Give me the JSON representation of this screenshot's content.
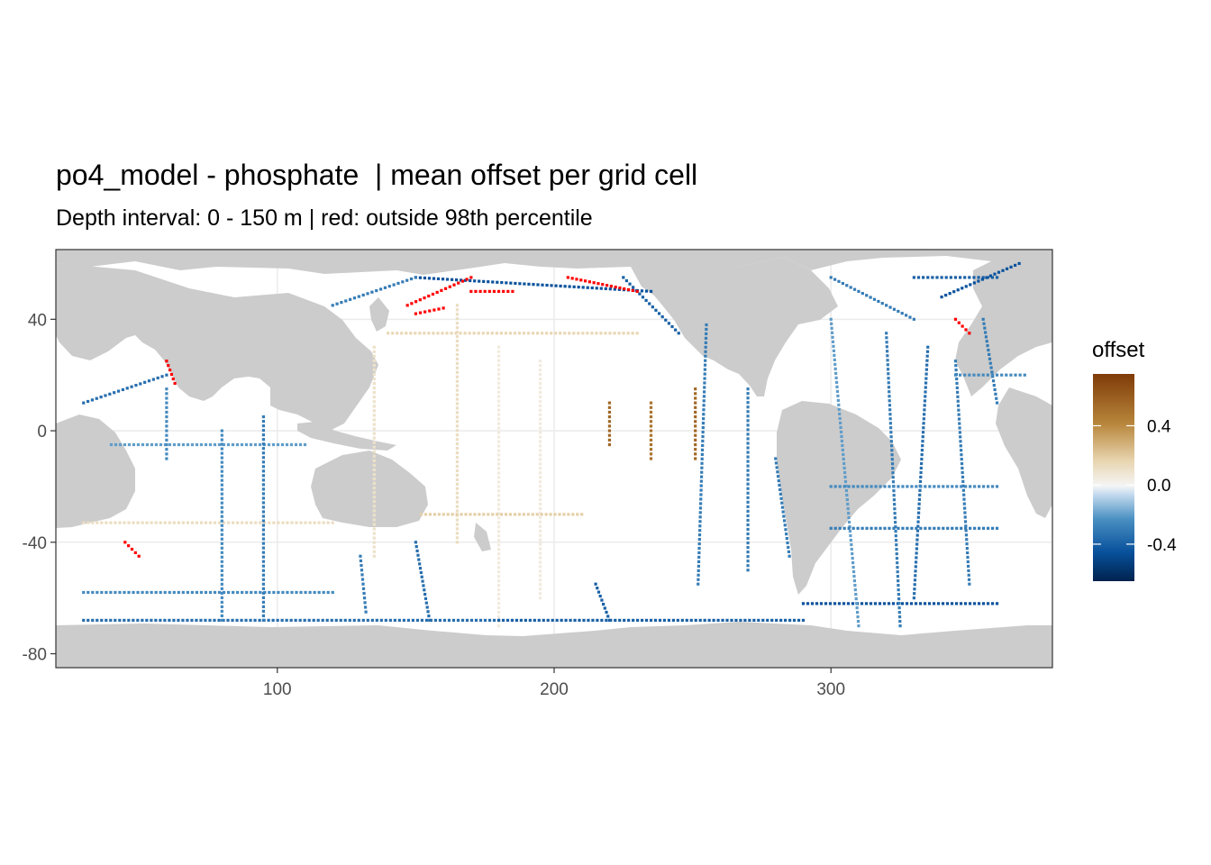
{
  "title": "po4_model - phosphate  | mean offset per grid cell",
  "subtitle": "Depth interval: 0 - 150 m | red: outside 98th percentile",
  "colors": {
    "land": "#cccccc",
    "ocean": "#ffffff",
    "grid": "#ebebeb",
    "outlier": "#ff0000",
    "scale": [
      "#00224e",
      "#08519c",
      "#4a90c2",
      "#c6dbef",
      "#f5f5f5",
      "#e8d5b0",
      "#b8863b",
      "#7f3b08"
    ]
  },
  "chart_data": {
    "type": "heatmap",
    "x_ticks": [
      100,
      200,
      300
    ],
    "y_ticks": [
      40,
      0,
      -40,
      -80
    ],
    "xlim": [
      20,
      380
    ],
    "ylim": [
      -85,
      65
    ],
    "legend": {
      "title": "offset",
      "position": "right",
      "breaks": [
        0.4,
        0.0,
        -0.4
      ],
      "break_labels": [
        "0.4",
        "0.0",
        "-0.4"
      ],
      "range": [
        -0.65,
        0.75
      ]
    },
    "tracks": [
      {
        "path": [
          [
            140,
            35
          ],
          [
            230,
            35
          ]
        ],
        "v": 0.15
      },
      {
        "path": [
          [
            135,
            30
          ],
          [
            135,
            -45
          ]
        ],
        "v": 0.1
      },
      {
        "path": [
          [
            165,
            45
          ],
          [
            165,
            -40
          ]
        ],
        "v": 0.12
      },
      {
        "path": [
          [
            180,
            30
          ],
          [
            180,
            -70
          ]
        ],
        "v": 0.05
      },
      {
        "path": [
          [
            195,
            25
          ],
          [
            195,
            -60
          ]
        ],
        "v": 0.05
      },
      {
        "path": [
          [
            220,
            10
          ],
          [
            220,
            -5
          ]
        ],
        "v": 0.55
      },
      {
        "path": [
          [
            235,
            10
          ],
          [
            235,
            -10
          ]
        ],
        "v": 0.5
      },
      {
        "path": [
          [
            251,
            15
          ],
          [
            251,
            -10
          ]
        ],
        "v": 0.55
      },
      {
        "path": [
          [
            152,
            -30
          ],
          [
            210,
            -30
          ]
        ],
        "v": 0.18
      },
      {
        "path": [
          [
            30,
            -33
          ],
          [
            120,
            -33
          ]
        ],
        "v": 0.12
      },
      {
        "path": [
          [
            255,
            38
          ],
          [
            252,
            -55
          ]
        ],
        "v": -0.3
      },
      {
        "path": [
          [
            270,
            15
          ],
          [
            270,
            -50
          ]
        ],
        "v": -0.3
      },
      {
        "path": [
          [
            280,
            -10
          ],
          [
            285,
            -45
          ]
        ],
        "v": -0.3
      },
      {
        "path": [
          [
            30,
            -68
          ],
          [
            180,
            -68
          ]
        ],
        "v": -0.35
      },
      {
        "path": [
          [
            180,
            -68
          ],
          [
            290,
            -68
          ]
        ],
        "v": -0.4
      },
      {
        "path": [
          [
            290,
            -62
          ],
          [
            360,
            -62
          ]
        ],
        "v": -0.45
      },
      {
        "path": [
          [
            30,
            -58
          ],
          [
            120,
            -58
          ]
        ],
        "v": -0.25
      },
      {
        "path": [
          [
            40,
            -5
          ],
          [
            110,
            -5
          ]
        ],
        "v": -0.2
      },
      {
        "path": [
          [
            80,
            0
          ],
          [
            80,
            -68
          ]
        ],
        "v": -0.25
      },
      {
        "path": [
          [
            95,
            5
          ],
          [
            95,
            -68
          ]
        ],
        "v": -0.3
      },
      {
        "path": [
          [
            130,
            -45
          ],
          [
            132,
            -65
          ]
        ],
        "v": -0.3
      },
      {
        "path": [
          [
            150,
            -40
          ],
          [
            155,
            -68
          ]
        ],
        "v": -0.35
      },
      {
        "path": [
          [
            215,
            -55
          ],
          [
            220,
            -68
          ]
        ],
        "v": -0.4
      },
      {
        "path": [
          [
            300,
            40
          ],
          [
            310,
            -70
          ]
        ],
        "v": -0.2
      },
      {
        "path": [
          [
            320,
            35
          ],
          [
            325,
            -70
          ]
        ],
        "v": -0.3
      },
      {
        "path": [
          [
            335,
            30
          ],
          [
            330,
            -60
          ]
        ],
        "v": -0.35
      },
      {
        "path": [
          [
            345,
            25
          ],
          [
            350,
            -55
          ]
        ],
        "v": -0.3
      },
      {
        "path": [
          [
            300,
            -20
          ],
          [
            360,
            -20
          ]
        ],
        "v": -0.25
      },
      {
        "path": [
          [
            300,
            -35
          ],
          [
            360,
            -35
          ]
        ],
        "v": -0.3
      },
      {
        "path": [
          [
            330,
            55
          ],
          [
            360,
            55
          ]
        ],
        "v": -0.4
      },
      {
        "path": [
          [
            300,
            55
          ],
          [
            330,
            40
          ]
        ],
        "v": -0.3
      },
      {
        "path": [
          [
            340,
            48
          ],
          [
            368,
            60
          ]
        ],
        "v": -0.45
      },
      {
        "path": [
          [
            150,
            55
          ],
          [
            235,
            50
          ]
        ],
        "v": -0.45
      },
      {
        "path": [
          [
            120,
            45
          ],
          [
            150,
            55
          ]
        ],
        "v": -0.3
      },
      {
        "path": [
          [
            225,
            55
          ],
          [
            245,
            35
          ]
        ],
        "v": -0.4
      },
      {
        "path": [
          [
            60,
            15
          ],
          [
            60,
            -10
          ]
        ],
        "v": -0.25
      },
      {
        "path": [
          [
            30,
            10
          ],
          [
            60,
            20
          ]
        ],
        "v": -0.35
      },
      {
        "path": [
          [
            355,
            40
          ],
          [
            360,
            10
          ]
        ],
        "v": -0.3
      },
      {
        "path": [
          [
            345,
            20
          ],
          [
            370,
            20
          ]
        ],
        "v": -0.25
      }
    ],
    "outliers": [
      {
        "path": [
          [
            147,
            45
          ],
          [
            170,
            55
          ]
        ],
        "v": 0.9
      },
      {
        "path": [
          [
            170,
            50
          ],
          [
            185,
            50
          ]
        ],
        "v": 0.9
      },
      {
        "path": [
          [
            150,
            42
          ],
          [
            160,
            44
          ]
        ],
        "v": 0.9
      },
      {
        "path": [
          [
            205,
            55
          ],
          [
            230,
            50
          ]
        ],
        "v": 0.9
      },
      {
        "path": [
          [
            60,
            25
          ],
          [
            63,
            17
          ]
        ],
        "v": 0.9
      },
      {
        "path": [
          [
            45,
            -40
          ],
          [
            50,
            -45
          ]
        ],
        "v": 0.9
      },
      {
        "path": [
          [
            345,
            40
          ],
          [
            350,
            35
          ]
        ],
        "v": 0.9
      }
    ]
  }
}
